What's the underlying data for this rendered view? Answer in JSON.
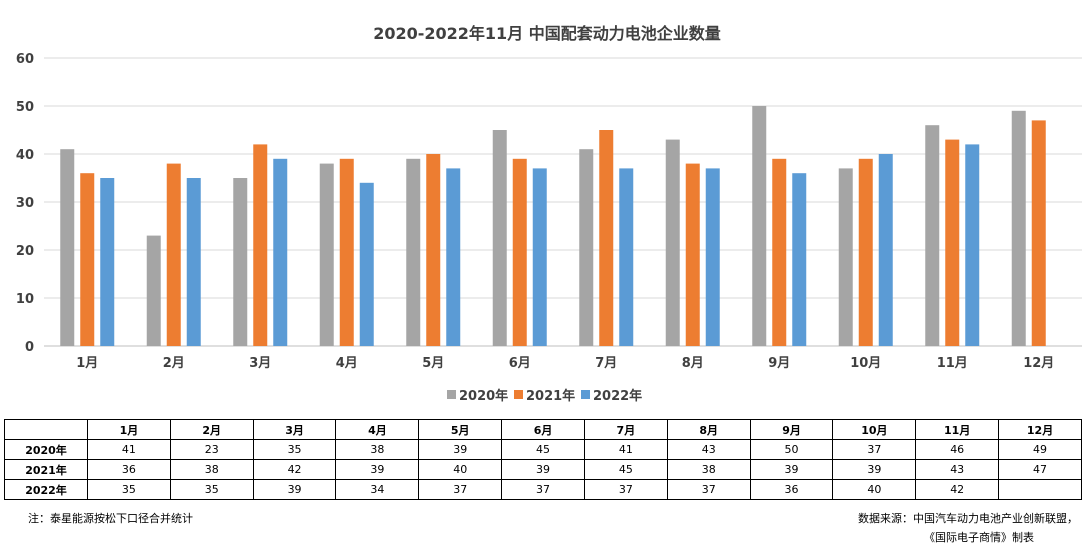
{
  "chart_data": {
    "type": "bar",
    "title": "2020-2022年11月 中国配套动力电池企业数量",
    "categories": [
      "1月",
      "2月",
      "3月",
      "4月",
      "5月",
      "6月",
      "7月",
      "8月",
      "9月",
      "10月",
      "11月",
      "12月"
    ],
    "series": [
      {
        "name": "2020年",
        "values": [
          41,
          23,
          35,
          38,
          39,
          45,
          41,
          43,
          50,
          37,
          46,
          49
        ],
        "color": "#A5A5A5"
      },
      {
        "name": "2021年",
        "values": [
          36,
          38,
          42,
          39,
          40,
          39,
          45,
          38,
          39,
          39,
          43,
          47
        ],
        "color": "#ED7D31"
      },
      {
        "name": "2022年",
        "values": [
          35,
          35,
          39,
          34,
          37,
          37,
          37,
          37,
          36,
          40,
          42,
          null
        ],
        "color": "#5B9BD5"
      }
    ],
    "ylim": [
      0,
      60
    ],
    "yticks": [
      0,
      10,
      20,
      30,
      40,
      50,
      60
    ],
    "grid": true,
    "legend": "bottom"
  },
  "notes": {
    "left": "注：泰星能源按松下口径合并统计",
    "right_line1": "数据来源：中国汽车动力电池产业创新联盟，",
    "right_line2": "《国际电子商情》制表"
  }
}
